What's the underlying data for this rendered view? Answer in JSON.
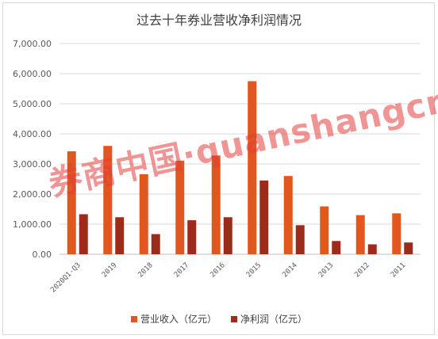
{
  "chart_data": {
    "type": "bar",
    "title": "过去十年券业营收净利润情况",
    "categories": [
      "2020Q1-Q3",
      "2019",
      "2018",
      "2017",
      "2016",
      "2015",
      "2014",
      "2013",
      "2012",
      "2011"
    ],
    "series": [
      {
        "name": "营业收入（亿元）",
        "color": "#E2561F",
        "values": [
          3420,
          3600,
          2660,
          3110,
          3280,
          5750,
          2600,
          1590,
          1300,
          1360
        ]
      },
      {
        "name": "净利润（亿元）",
        "color": "#9E2A1A",
        "values": [
          1330,
          1230,
          670,
          1130,
          1230,
          2450,
          965,
          440,
          330,
          390
        ]
      }
    ],
    "ylim": [
      0,
      7000
    ],
    "yticks": [
      "0.00",
      "1,000.00",
      "2,000.00",
      "3,000.00",
      "4,000.00",
      "5,000.00",
      "6,000.00",
      "7,000.00"
    ],
    "grid": true,
    "legend_position": "bottom"
  },
  "watermark": "券商中国·quanshangcn"
}
